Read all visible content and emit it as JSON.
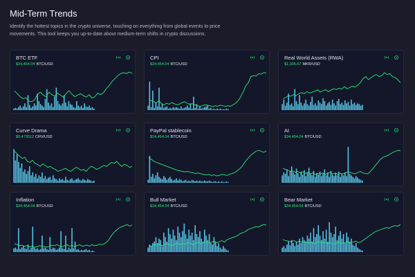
{
  "header": {
    "title": "Mid-Term Trends",
    "description": "Identify the hottest topics in the crypto universe, touching on everything from global events to price movements. This tool keeps you up-to-date about medium-term shifts in crypto discussions."
  },
  "colors": {
    "bar": "#58c6e8",
    "line": "#2ee87a",
    "icon": "#22c36b"
  },
  "icons": {
    "left": "radio-signal-icon",
    "right": "settings-icon"
  },
  "cards": [
    {
      "title": "BTC ETF",
      "price": "$34,454.04",
      "pair": "BTC/USD",
      "bars": [
        2,
        3,
        2,
        4,
        6,
        3,
        5,
        9,
        4,
        20,
        7,
        3,
        5,
        9,
        6,
        22,
        12,
        8,
        6,
        4,
        15,
        28,
        10,
        6,
        9,
        4,
        18,
        30,
        12,
        8,
        6,
        9,
        20,
        10,
        5,
        12,
        8,
        7,
        4,
        3,
        12,
        6,
        4,
        6,
        3,
        9,
        5,
        4,
        6,
        3,
        4,
        2
      ],
      "line": [
        35,
        30,
        24,
        20,
        22,
        15,
        14,
        18,
        28,
        33,
        27,
        24,
        33,
        28,
        25,
        31,
        27,
        23,
        30,
        36,
        29,
        24,
        27,
        30,
        26,
        23,
        28,
        21,
        24,
        31,
        28,
        32,
        40,
        46,
        54,
        60,
        66,
        70,
        72,
        70,
        73,
        71
      ]
    },
    {
      "title": "CPI",
      "price": "$34,454.04",
      "pair": "BTC/USD",
      "bars": [
        6,
        38,
        4,
        26,
        3,
        10,
        5,
        30,
        4,
        8,
        3,
        4,
        5,
        2,
        3,
        2,
        4,
        3,
        4,
        3,
        2,
        5,
        2,
        3,
        4,
        6,
        3,
        9,
        2,
        18,
        3,
        8,
        2,
        5,
        2,
        3,
        4,
        5,
        6,
        2,
        3,
        1,
        2,
        1,
        2,
        1,
        2,
        1,
        1,
        1,
        2,
        1
      ],
      "line": [
        18,
        16,
        14,
        12,
        16,
        10,
        8,
        11,
        9,
        12,
        10,
        8,
        9,
        12,
        14,
        11,
        9,
        10,
        8,
        6,
        5,
        6,
        8,
        7,
        6,
        4,
        6,
        5,
        7,
        6,
        5,
        6,
        5,
        8,
        11,
        16,
        24,
        34,
        46,
        52,
        64,
        66,
        65,
        70,
        69,
        72,
        71
      ]
    },
    {
      "title": "Real World Assets (RWA)",
      "price": "$1,305.67",
      "pair": "MKR/USD",
      "bars": [
        8,
        14,
        6,
        10,
        22,
        7,
        9,
        5,
        28,
        12,
        8,
        20,
        10,
        6,
        9,
        14,
        8,
        6,
        11,
        18,
        7,
        9,
        6,
        13,
        10,
        8,
        16,
        12,
        6,
        9,
        11,
        7,
        14,
        9,
        6,
        12,
        15,
        8,
        10,
        7,
        13,
        9,
        11,
        6,
        14,
        8,
        10,
        7,
        9,
        8,
        6,
        7
      ],
      "line": [
        20,
        22,
        26,
        25,
        28,
        26,
        30,
        32,
        30,
        34,
        31,
        33,
        35,
        38,
        33,
        36,
        38,
        34,
        37,
        40,
        38,
        41,
        39,
        44,
        40,
        42,
        45,
        43,
        47,
        52,
        60,
        64,
        58,
        62,
        66,
        68,
        64,
        66,
        72,
        68,
        70,
        64,
        62,
        58,
        52
      ]
    },
    {
      "title": "Curve Drama",
      "price": "$0.473512",
      "pair": "CRV/USD",
      "bars": [
        45,
        30,
        38,
        28,
        20,
        26,
        15,
        18,
        12,
        16,
        22,
        10,
        14,
        8,
        12,
        6,
        10,
        8,
        14,
        6,
        9,
        5,
        7,
        8,
        4,
        10,
        6,
        5,
        3,
        6,
        4,
        5,
        3,
        8,
        4,
        3,
        5,
        6,
        3,
        4,
        5,
        6,
        4,
        3,
        5,
        4,
        3,
        5,
        4,
        3,
        2,
        3
      ],
      "line": [
        60,
        55,
        50,
        46,
        48,
        40,
        38,
        42,
        36,
        34,
        30,
        35,
        32,
        28,
        30,
        26,
        24,
        20,
        22,
        24,
        26,
        22,
        20,
        24,
        28,
        26,
        22,
        24,
        20,
        26,
        30,
        28,
        24,
        26,
        29,
        32,
        30,
        34,
        38,
        36,
        40,
        34,
        30,
        34,
        32,
        28,
        30
      ]
    },
    {
      "title": "PayPal stablecoin",
      "price": "$34,454.04",
      "pair": "BTC/USD",
      "bars": [
        4,
        36,
        8,
        12,
        6,
        10,
        14,
        8,
        6,
        5,
        9,
        7,
        4,
        6,
        8,
        5,
        3,
        4,
        6,
        3,
        5,
        4,
        2,
        3,
        4,
        2,
        3,
        2,
        4,
        3,
        2,
        3,
        2,
        3,
        2,
        2,
        3,
        2,
        2,
        3,
        2,
        1,
        2,
        2,
        1,
        2,
        1,
        2,
        1,
        1,
        2,
        1
      ],
      "line": [
        48,
        44,
        40,
        38,
        36,
        34,
        32,
        30,
        28,
        26,
        24,
        22,
        21,
        20,
        19,
        20,
        18,
        17,
        16,
        17,
        15,
        14,
        13,
        14,
        12,
        13,
        11,
        12,
        14,
        13,
        12,
        14,
        16,
        18,
        22,
        26,
        32,
        40,
        46,
        52,
        56,
        60,
        62,
        60,
        58,
        61
      ]
    },
    {
      "title": "AI",
      "price": "$34,454.04",
      "pair": "BTC/USD",
      "bars": [
        10,
        14,
        12,
        18,
        9,
        16,
        22,
        14,
        11,
        19,
        13,
        8,
        15,
        11,
        17,
        9,
        14,
        20,
        12,
        10,
        16,
        8,
        13,
        11,
        15,
        9,
        12,
        18,
        10,
        14,
        8,
        16,
        11,
        9,
        13,
        10,
        15,
        8,
        12,
        10,
        14,
        9,
        48,
        12,
        10,
        8,
        6,
        9,
        7,
        5,
        4,
        3
      ],
      "line": [
        26,
        24,
        22,
        20,
        21,
        18,
        20,
        17,
        19,
        16,
        18,
        15,
        17,
        14,
        16,
        15,
        17,
        14,
        16,
        18,
        15,
        17,
        14,
        16,
        15,
        17,
        19,
        18,
        16,
        15,
        18,
        20,
        17,
        16,
        15,
        20,
        26,
        32,
        38,
        44,
        48,
        50,
        52,
        55,
        58,
        60,
        62,
        61
      ]
    },
    {
      "title": "Inflation",
      "price": "$34,454.04",
      "pair": "BTC/USD",
      "bars": [
        5,
        6,
        4,
        32,
        4,
        6,
        8,
        5,
        4,
        10,
        3,
        6,
        34,
        6,
        4,
        5,
        3,
        4,
        22,
        5,
        6,
        4,
        3,
        20,
        4,
        6,
        5,
        3,
        4,
        6,
        28,
        5,
        4,
        22,
        3,
        6,
        4,
        32,
        5,
        14,
        3,
        4,
        2,
        3,
        2,
        3,
        4,
        2,
        3,
        1,
        2,
        1
      ],
      "line": [
        14,
        12,
        10,
        11,
        9,
        10,
        8,
        9,
        7,
        8,
        10,
        9,
        8,
        7,
        9,
        11,
        10,
        12,
        9,
        8,
        10,
        12,
        9,
        11,
        8,
        10,
        12,
        9,
        10,
        11,
        9,
        12,
        10,
        11,
        13,
        12,
        14,
        18,
        24,
        32,
        38,
        42,
        46,
        48,
        50,
        52,
        49,
        51
      ]
    },
    {
      "title": "Bull Market",
      "price": "$34,454.04",
      "pair": "BTC/USD",
      "bars": [
        6,
        10,
        8,
        12,
        14,
        20,
        12,
        18,
        16,
        8,
        26,
        20,
        14,
        32,
        24,
        18,
        30,
        22,
        16,
        34,
        26,
        20,
        28,
        38,
        24,
        18,
        30,
        22,
        26,
        16,
        36,
        24,
        20,
        28,
        18,
        14,
        30,
        22,
        16,
        24,
        12,
        10,
        20,
        14,
        8,
        12,
        6,
        4,
        8,
        5,
        3,
        2
      ],
      "line": [
        10,
        9,
        12,
        11,
        13,
        10,
        12,
        14,
        12,
        10,
        13,
        15,
        12,
        14,
        13,
        16,
        14,
        12,
        15,
        17,
        14,
        16,
        18,
        15,
        17,
        19,
        16,
        18,
        20,
        17,
        22,
        24,
        26,
        28,
        30,
        34,
        36,
        38,
        42,
        44,
        46,
        48,
        47,
        50,
        52,
        51
      ]
    },
    {
      "title": "Bear Market",
      "price": "$34,454.04",
      "pair": "BTC/USD",
      "bars": [
        6,
        8,
        5,
        10,
        14,
        9,
        16,
        12,
        8,
        14,
        10,
        18,
        12,
        20,
        16,
        14,
        22,
        18,
        26,
        14,
        32,
        20,
        24,
        36,
        22,
        16,
        28,
        18,
        30,
        14,
        40,
        26,
        20,
        24,
        34,
        16,
        22,
        28,
        18,
        24,
        12,
        26,
        20,
        14,
        18,
        10,
        8,
        12,
        6,
        4,
        3,
        2
      ],
      "line": [
        22,
        20,
        19,
        18,
        20,
        17,
        19,
        16,
        18,
        15,
        17,
        14,
        16,
        18,
        15,
        17,
        14,
        16,
        13,
        15,
        17,
        14,
        16,
        18,
        15,
        17,
        19,
        16,
        18,
        22,
        26,
        30,
        34,
        38,
        40,
        42,
        44,
        46,
        45,
        48,
        50,
        49,
        52
      ]
    }
  ]
}
